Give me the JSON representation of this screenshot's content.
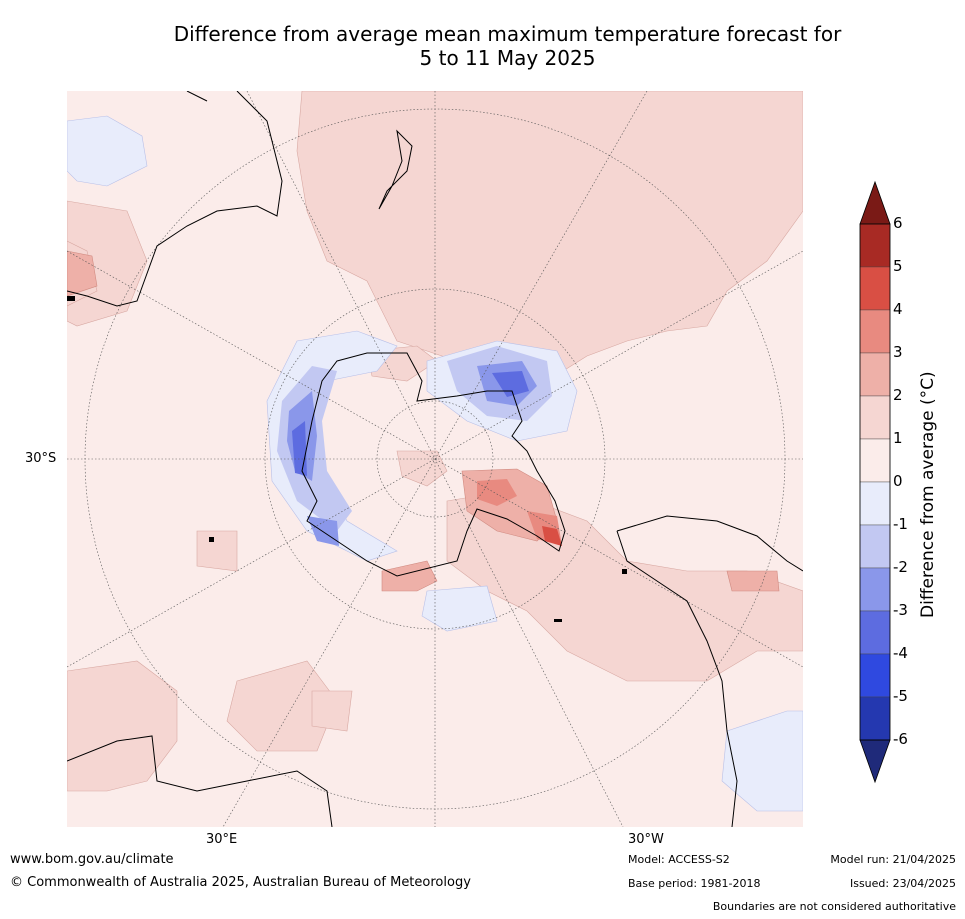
{
  "title": {
    "line1": "Difference from average mean maximum temperature forecast for",
    "line2": "5 to 11 May 2025"
  },
  "graticule_labels": {
    "lat": "30°S",
    "lon_left": "30°E",
    "lon_right": "30°W"
  },
  "colorbar": {
    "label": "Difference from average (°C)",
    "ticks": [
      "6",
      "5",
      "4",
      "3",
      "2",
      "1",
      "0",
      "-1",
      "-2",
      "-3",
      "-4",
      "-5",
      "-6"
    ],
    "colors": [
      "#7a1a16",
      "#a82a24",
      "#d94f44",
      "#e88a80",
      "#eeb0a8",
      "#f5d6d2",
      "#fbecea",
      "#e8ecfb",
      "#c2c8f2",
      "#8a97ea",
      "#5d6ce0",
      "#2f49e0",
      "#2438b0",
      "#1f2a7a"
    ]
  },
  "footer": {
    "website": "www.bom.gov.au/climate",
    "copyright": "© Commonwealth of Australia 2025, Australian Bureau of Meteorology",
    "model": "Model: ACCESS-S2",
    "base_period": "Base period: 1981-2018",
    "model_run": "Model run: 21/04/2025",
    "issued": "Issued: 23/04/2025",
    "disclaimer": "Boundaries are not considered authoritative"
  }
}
